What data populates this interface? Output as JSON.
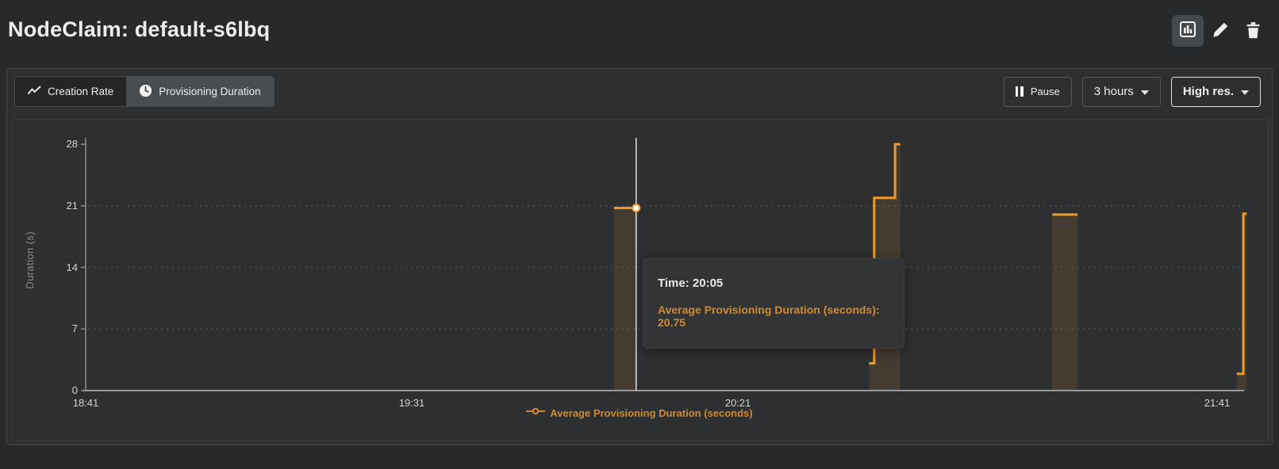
{
  "header": {
    "title": "NodeClaim: default-s6lbq",
    "actions": [
      {
        "icon": "bar-chart-icon",
        "active": true
      },
      {
        "icon": "pencil-icon"
      },
      {
        "icon": "trash-icon"
      }
    ]
  },
  "toolbar": {
    "tabs": [
      {
        "label": "Creation Rate",
        "icon": "trend-line-icon",
        "active": false
      },
      {
        "label": "Provisioning Duration",
        "icon": "clock-icon",
        "active": true
      }
    ],
    "pause_label": "Pause",
    "pause_icon": "pause-icon",
    "range_label": "3 hours",
    "resolution_label": "High res.",
    "dropdown_icon": "caret-down-icon"
  },
  "tooltip": {
    "time_label": "Time: 20:05",
    "value_label": "Average Provisioning Duration (seconds): 20.75"
  },
  "chart_data": {
    "type": "line",
    "step": true,
    "title": "",
    "xlabel": "",
    "ylabel": "Duration (s)",
    "ylim": [
      0,
      28
    ],
    "y_ticks": [
      0,
      7,
      14,
      21,
      28
    ],
    "grid_values": [
      7,
      14,
      21
    ],
    "grid_style": "dotted",
    "x_axis_start_time": "18:41",
    "x_ticks": [
      {
        "minutes": 0,
        "label": "18:41"
      },
      {
        "minutes": 50,
        "label": "19:31"
      },
      {
        "minutes": 100,
        "label": "20:21"
      },
      {
        "minutes": 180,
        "label": "21:41"
      }
    ],
    "series": [
      {
        "name": "Average Provisioning Duration (seconds)",
        "color": "#ee9b2e",
        "fill_opacity": 0.12,
        "polylines_minutes_value": [
          [
            [
              81,
              20.75
            ],
            [
              84.4,
              20.75
            ]
          ],
          [
            [
              120.1,
              3.1
            ],
            [
              120.9,
              3.1
            ],
            [
              120.9,
              21.9
            ],
            [
              124.1,
              21.9
            ],
            [
              124.1,
              28
            ],
            [
              124.9,
              28
            ]
          ],
          [
            [
              148.2,
              20
            ],
            [
              152.1,
              20
            ]
          ],
          [
            [
              176.5,
              1.9
            ],
            [
              177.5,
              1.9
            ],
            [
              177.5,
              20.1
            ],
            [
              178,
              20.1
            ]
          ]
        ]
      }
    ],
    "hover": {
      "minutes": 84.4,
      "value": 20.75,
      "time_label": "20:05"
    },
    "legend": {
      "label": "Average Provisioning Duration (seconds)",
      "position": "bottom",
      "marker": "line-circle-marker"
    }
  },
  "colors": {
    "accent_line": "#ee9b2e",
    "accent_text": "#d1892f",
    "background": "#28292b",
    "panel": "#2d2f31",
    "axis": "#98999b",
    "grid": "#4b4c4e",
    "crosshair": "#e2e2e2"
  }
}
